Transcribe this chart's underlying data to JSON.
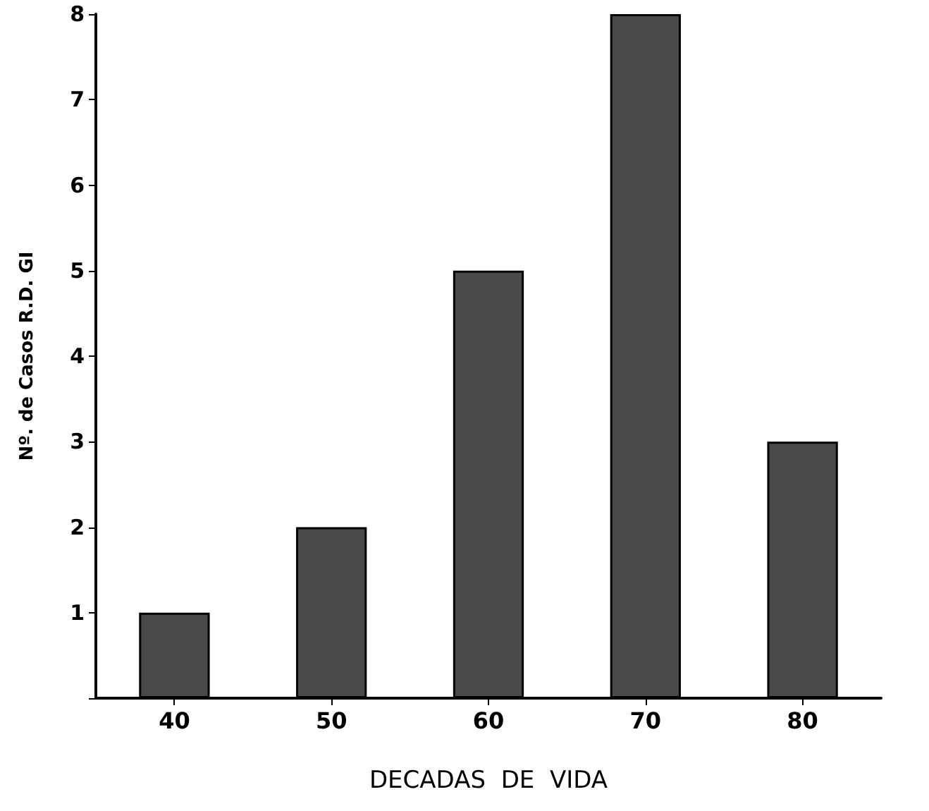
{
  "chart_data": {
    "type": "bar",
    "xlabel": "DECADAS  DE  VIDA",
    "ylabel": "Nº. de Casos R.D. GI",
    "categories": [
      "40",
      "50",
      "60",
      "70",
      "80"
    ],
    "series": [
      {
        "color": "#4a4a4a",
        "values": [
          1,
          2,
          5,
          8,
          3
        ]
      }
    ],
    "ylim": [
      0,
      8
    ],
    "yticks": [
      {
        "value": 0,
        "label": null
      },
      1,
      2,
      3,
      4,
      5,
      6,
      7,
      8
    ],
    "grid": false
  }
}
